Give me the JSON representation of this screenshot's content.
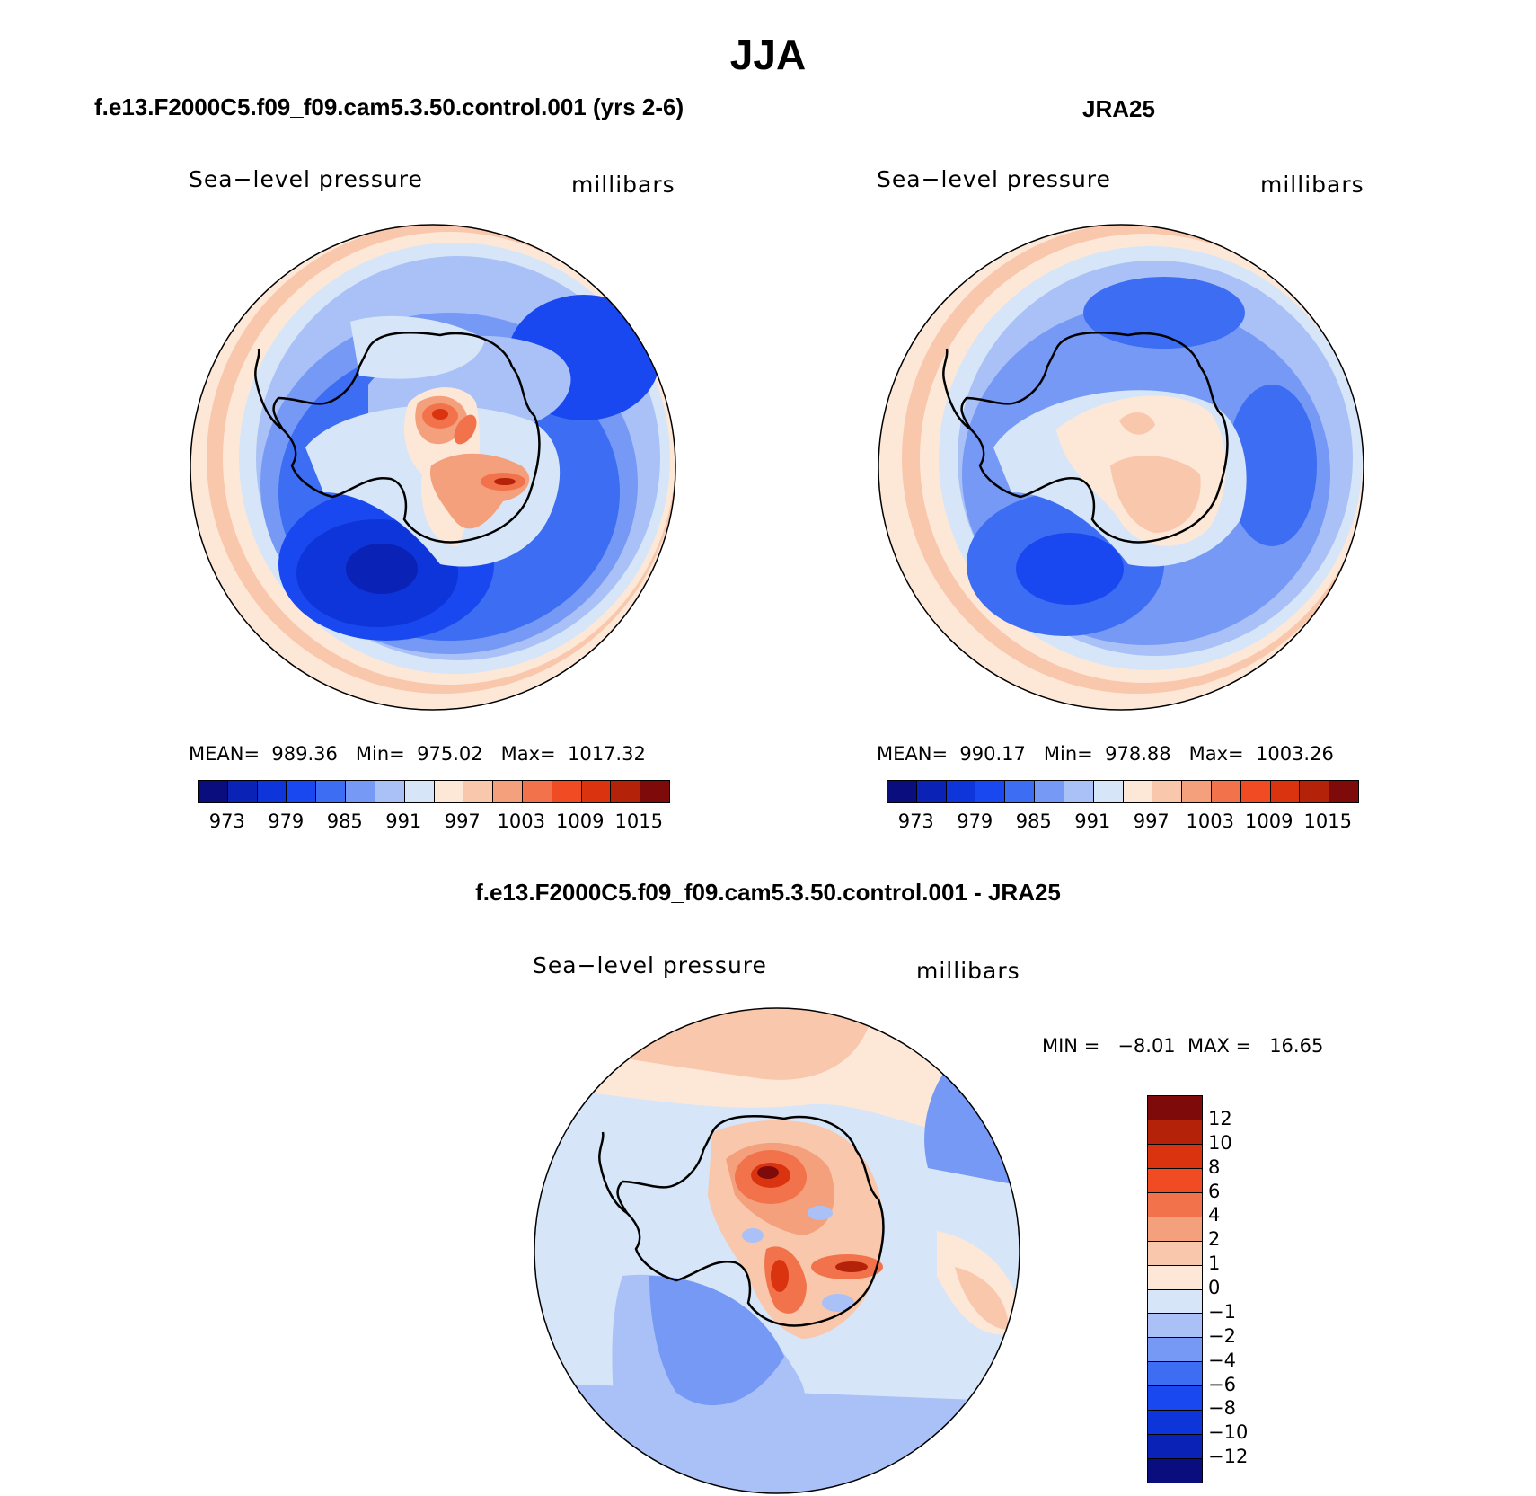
{
  "title": "JJA",
  "panels": [
    {
      "id": "model",
      "heading": "f.e13.F2000C5.f09_f09.cam5.3.50.control.001 (yrs 2-6)",
      "variable": "Sea−level pressure",
      "units": "millibars",
      "stats": "MEAN=  989.36   Min=  975.02   Max=  1017.32",
      "colorbar_ticks": [
        "973",
        "979",
        "985",
        "991",
        "997",
        "1003",
        "1009",
        "1015"
      ]
    },
    {
      "id": "obs",
      "heading": "JRA25",
      "variable": "Sea−level pressure",
      "units": "millibars",
      "stats": "MEAN=  990.17   Min=  978.88   Max=  1003.26",
      "colorbar_ticks": [
        "973",
        "979",
        "985",
        "991",
        "997",
        "1003",
        "1009",
        "1015"
      ]
    },
    {
      "id": "diff",
      "heading": "f.e13.F2000C5.f09_f09.cam5.3.50.control.001 - JRA25",
      "variable": "Sea−level pressure",
      "units": "millibars",
      "stats": "MIN =   −8.01  MAX =   16.65",
      "colorbar_ticks": [
        "12",
        "10",
        "8",
        "6",
        "4",
        "2",
        "1",
        "0",
        "−1",
        "−2",
        "−4",
        "−6",
        "−8",
        "−10",
        "−12"
      ]
    }
  ],
  "palette_abs": [
    "#0a0d7e",
    "#0a22b5",
    "#0d35d9",
    "#1a48f0",
    "#3c6df2",
    "#7599f4",
    "#a9c1f7",
    "#d6e6f8",
    "#fde8d8",
    "#f9c7ac",
    "#f4a07c",
    "#f2734b",
    "#f04b22",
    "#d9330f",
    "#b32209",
    "#7e0a0a"
  ],
  "palette_diff": [
    "#7e0a0a",
    "#b32209",
    "#d9330f",
    "#f04b22",
    "#f2734b",
    "#f4a07c",
    "#f9c7ac",
    "#fde8d8",
    "#d6e6f8",
    "#a9c1f7",
    "#7599f4",
    "#3c6df2",
    "#1a48f0",
    "#0d35d9",
    "#0a22b5",
    "#0a0d7e"
  ]
}
